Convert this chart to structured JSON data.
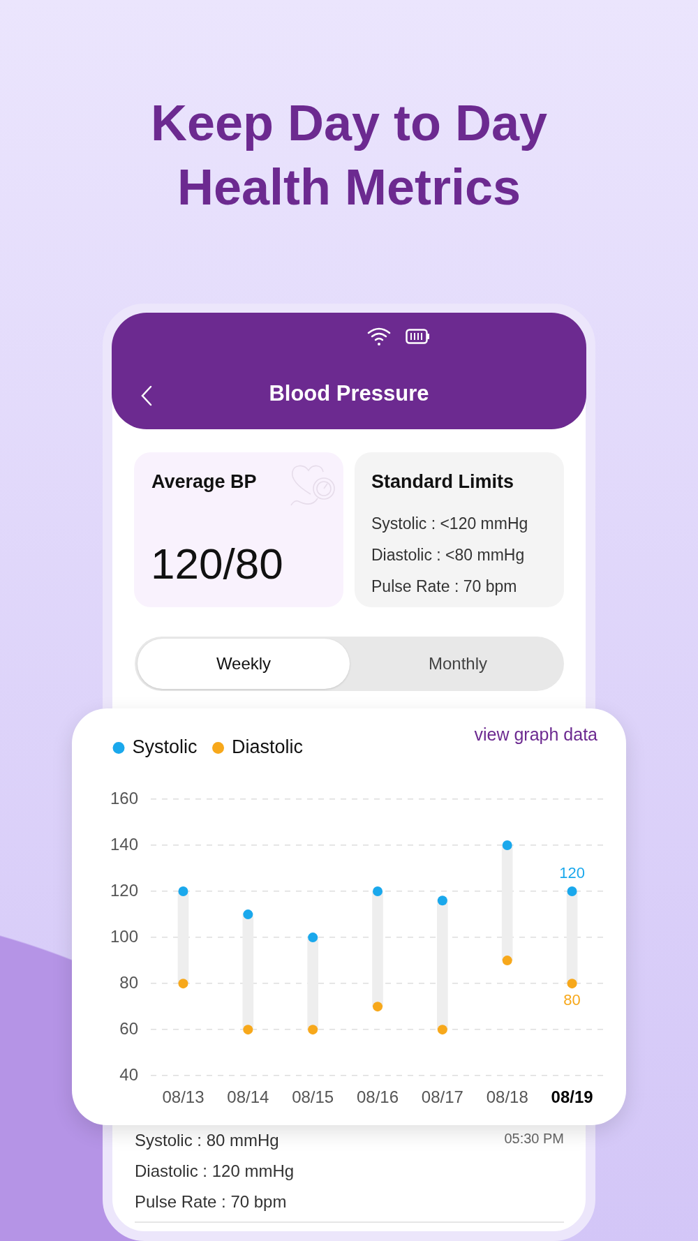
{
  "chart_data": {
    "type": "bar",
    "title": "Keep Day to Day Health Metrics",
    "categories": [
      "08/13",
      "08/14",
      "08/15",
      "08/16",
      "08/17",
      "08/18",
      "08/19"
    ],
    "series": [
      {
        "color": "#eeeeee",
        "base": [
          80,
          60,
          60,
          70,
          60,
          90,
          80
        ],
        "values": [
          40,
          50,
          40,
          50,
          56,
          50,
          40
        ]
      },
      {
        "type": "scatter",
        "name": "Systolic",
        "color": "#1aa8ec",
        "x": [
          "08/13",
          "08/14",
          "08/15",
          "08/16",
          "08/17",
          "08/18",
          "08/19"
        ],
        "values": [
          120,
          110,
          100,
          120,
          116,
          140,
          120
        ],
        "value_labels": [
          null,
          null,
          null,
          null,
          null,
          null,
          "120"
        ]
      },
      {
        "type": "scatter",
        "name": "Diastolic",
        "color": "#f7a81b",
        "x": [
          "08/13",
          "08/14",
          "08/15",
          "08/16",
          "08/17",
          "08/18",
          "08/19"
        ],
        "values": [
          80,
          60,
          60,
          70,
          60,
          90,
          80
        ],
        "value_labels": [
          null,
          null,
          null,
          null,
          null,
          null,
          "80"
        ]
      }
    ],
    "ylim": [
      40,
      160
    ],
    "yticks": [
      40,
      60,
      80,
      100,
      120,
      140,
      160
    ],
    "grid": "y",
    "legend": "top left",
    "marker": "circle",
    "annotations": [
      "Blood Pressure",
      "Average BP",
      "120/80",
      "Standard Limits",
      "Systolic : <120 mmHg",
      "Diastolic : <80 mmHg",
      "Pulse Rate : 70 bpm",
      "Weekly",
      "Monthly",
      "view graph data",
      "Systolic : 80 mmHg",
      "05:30 PM",
      "Diastolic : 120 mmHg",
      "Pulse Rate : 70 bpm"
    ]
  }
}
